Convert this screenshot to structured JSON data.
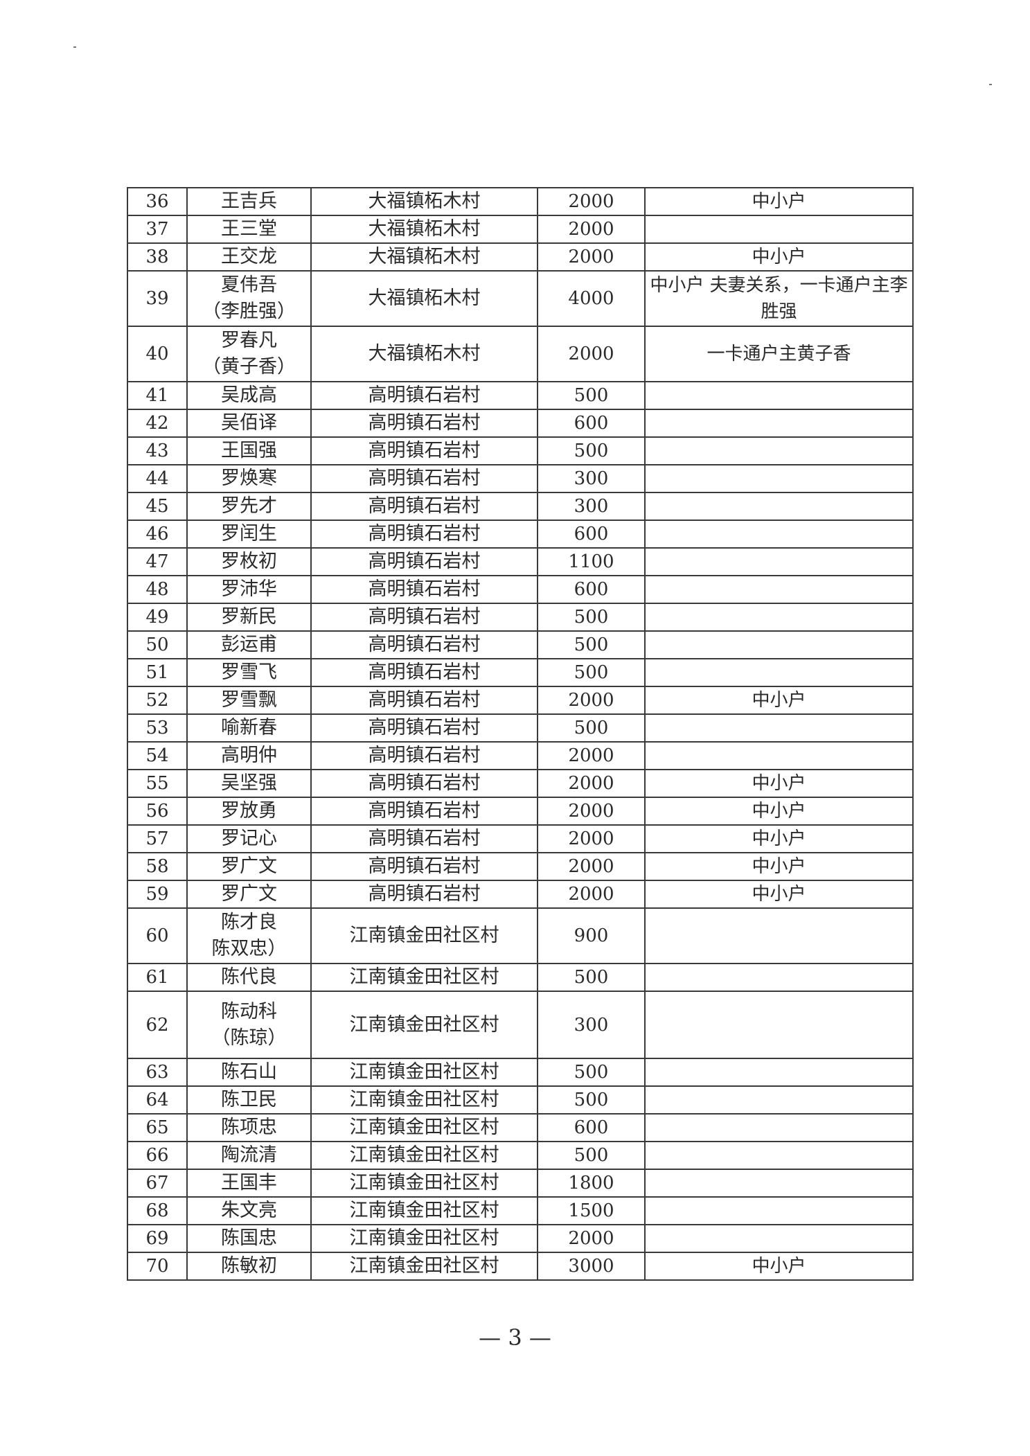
{
  "rows": [
    {
      "no": "36",
      "name": "王吉兵",
      "alias": "",
      "place": "大福镇柘木村",
      "amount": "2000",
      "note": "中小户"
    },
    {
      "no": "37",
      "name": "王三堂",
      "alias": "",
      "place": "大福镇柘木村",
      "amount": "2000",
      "note": ""
    },
    {
      "no": "38",
      "name": "王交龙",
      "alias": "",
      "place": "大福镇柘木村",
      "amount": "2000",
      "note": "中小户"
    },
    {
      "no": "39",
      "name": "夏伟吾",
      "alias": "（李胜强）",
      "place": "大福镇柘木村",
      "amount": "4000",
      "note": "中小户  夫妻关系，一卡通户主李胜强"
    },
    {
      "no": "40",
      "name": "罗春凡",
      "alias": "（黄子香）",
      "place": "大福镇柘木村",
      "amount": "2000",
      "note": "一卡通户主黄子香"
    },
    {
      "no": "41",
      "name": "吴成高",
      "alias": "",
      "place": "高明镇石岩村",
      "amount": "500",
      "note": ""
    },
    {
      "no": "42",
      "name": "吴佰译",
      "alias": "",
      "place": "高明镇石岩村",
      "amount": "600",
      "note": ""
    },
    {
      "no": "43",
      "name": "王国强",
      "alias": "",
      "place": "高明镇石岩村",
      "amount": "500",
      "note": ""
    },
    {
      "no": "44",
      "name": "罗焕寒",
      "alias": "",
      "place": "高明镇石岩村",
      "amount": "300",
      "note": ""
    },
    {
      "no": "45",
      "name": "罗先才",
      "alias": "",
      "place": "高明镇石岩村",
      "amount": "300",
      "note": ""
    },
    {
      "no": "46",
      "name": "罗闰生",
      "alias": "",
      "place": "高明镇石岩村",
      "amount": "600",
      "note": ""
    },
    {
      "no": "47",
      "name": "罗枚初",
      "alias": "",
      "place": "高明镇石岩村",
      "amount": "1100",
      "note": ""
    },
    {
      "no": "48",
      "name": "罗沛华",
      "alias": "",
      "place": "高明镇石岩村",
      "amount": "600",
      "note": ""
    },
    {
      "no": "49",
      "name": "罗新民",
      "alias": "",
      "place": "高明镇石岩村",
      "amount": "500",
      "note": ""
    },
    {
      "no": "50",
      "name": "彭运甫",
      "alias": "",
      "place": "高明镇石岩村",
      "amount": "500",
      "note": ""
    },
    {
      "no": "51",
      "name": "罗雪飞",
      "alias": "",
      "place": "高明镇石岩村",
      "amount": "500",
      "note": ""
    },
    {
      "no": "52",
      "name": "罗雪飘",
      "alias": "",
      "place": "高明镇石岩村",
      "amount": "2000",
      "note": "中小户"
    },
    {
      "no": "53",
      "name": "喻新春",
      "alias": "",
      "place": "高明镇石岩村",
      "amount": "500",
      "note": ""
    },
    {
      "no": "54",
      "name": "高明仲",
      "alias": "",
      "place": "高明镇石岩村",
      "amount": "2000",
      "note": ""
    },
    {
      "no": "55",
      "name": "吴坚强",
      "alias": "",
      "place": "高明镇石岩村",
      "amount": "2000",
      "note": "中小户"
    },
    {
      "no": "56",
      "name": "罗放勇",
      "alias": "",
      "place": "高明镇石岩村",
      "amount": "2000",
      "note": "中小户"
    },
    {
      "no": "57",
      "name": "罗记心",
      "alias": "",
      "place": "高明镇石岩村",
      "amount": "2000",
      "note": "中小户"
    },
    {
      "no": "58",
      "name": "罗广文",
      "alias": "",
      "place": "高明镇石岩村",
      "amount": "2000",
      "note": "中小户"
    },
    {
      "no": "59",
      "name": "罗广文",
      "alias": "",
      "place": "高明镇石岩村",
      "amount": "2000",
      "note": "中小户"
    },
    {
      "no": "60",
      "name": "陈才良",
      "alias": "陈双忠）",
      "place": "江南镇金田社区村",
      "amount": "900",
      "note": ""
    },
    {
      "no": "61",
      "name": "陈代良",
      "alias": "",
      "place": "江南镇金田社区村",
      "amount": "500",
      "note": ""
    },
    {
      "no": "62",
      "name": "陈动科",
      "alias": "（陈琼）",
      "place": "江南镇金田社区村",
      "amount": "300",
      "note": ""
    },
    {
      "no": "63",
      "name": "陈石山",
      "alias": "",
      "place": "江南镇金田社区村",
      "amount": "500",
      "note": ""
    },
    {
      "no": "64",
      "name": "陈卫民",
      "alias": "",
      "place": "江南镇金田社区村",
      "amount": "500",
      "note": ""
    },
    {
      "no": "65",
      "name": "陈项忠",
      "alias": "",
      "place": "江南镇金田社区村",
      "amount": "600",
      "note": ""
    },
    {
      "no": "66",
      "name": "陶流清",
      "alias": "",
      "place": "江南镇金田社区村",
      "amount": "500",
      "note": ""
    },
    {
      "no": "67",
      "name": "王国丰",
      "alias": "",
      "place": "江南镇金田社区村",
      "amount": "1800",
      "note": ""
    },
    {
      "no": "68",
      "name": "朱文亮",
      "alias": "",
      "place": "江南镇金田社区村",
      "amount": "1500",
      "note": ""
    },
    {
      "no": "69",
      "name": "陈国忠",
      "alias": "",
      "place": "江南镇金田社区村",
      "amount": "2000",
      "note": ""
    },
    {
      "no": "70",
      "name": "陈敏初",
      "alias": "",
      "place": "江南镇金田社区村",
      "amount": "3000",
      "note": "中小户"
    }
  ],
  "page_number": "— 3 —"
}
